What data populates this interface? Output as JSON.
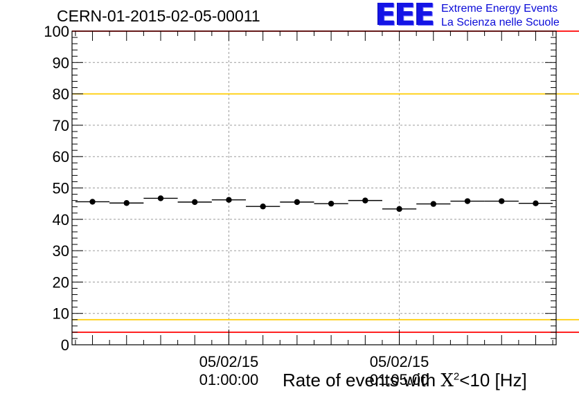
{
  "header": {
    "run_label": "CERN-01-2015-02-05-00011",
    "logo_mark": "EEE",
    "logo_line1": "Extreme Energy Events",
    "logo_line2": "La Scienza nelle Scuole"
  },
  "chart_data": {
    "type": "scatter",
    "title": "CERN-01-2015-02-05-00011",
    "xlabel_parts": {
      "prefix": "Rate of events with ",
      "chi": "X",
      "exp": "2",
      "suffix": "<10 [Hz]"
    },
    "ylabel": "",
    "ylim": [
      0,
      100
    ],
    "yticks": [
      0,
      10,
      20,
      30,
      40,
      50,
      60,
      70,
      80,
      90,
      100
    ],
    "xticks": [
      {
        "value": 5,
        "date": "05/02/15",
        "time": "01:00:00"
      },
      {
        "value": 10,
        "date": "05/02/15",
        "time": "01:05:00"
      }
    ],
    "x_unit": "minutes from 00:55:00",
    "xlim": [
      0.4,
      14.6
    ],
    "bin_width": 1,
    "x": [
      1,
      2,
      3,
      4,
      5,
      6,
      7,
      8,
      9,
      10,
      11,
      12,
      13,
      14
    ],
    "values": [
      45.6,
      45.2,
      46.7,
      45.5,
      46.2,
      44.1,
      45.5,
      45.0,
      46.0,
      43.3,
      44.9,
      45.8,
      45.8,
      45.1
    ],
    "reference_lines": [
      {
        "y": 100,
        "color": "#ff0000"
      },
      {
        "y": 80,
        "color": "#ffcc00"
      },
      {
        "y": 8,
        "color": "#ffcc00"
      },
      {
        "y": 4,
        "color": "#ff0000"
      }
    ],
    "grid": true,
    "colors": {
      "marker": "#000000",
      "grid": "#9a9a9a",
      "frame": "#000000"
    }
  }
}
